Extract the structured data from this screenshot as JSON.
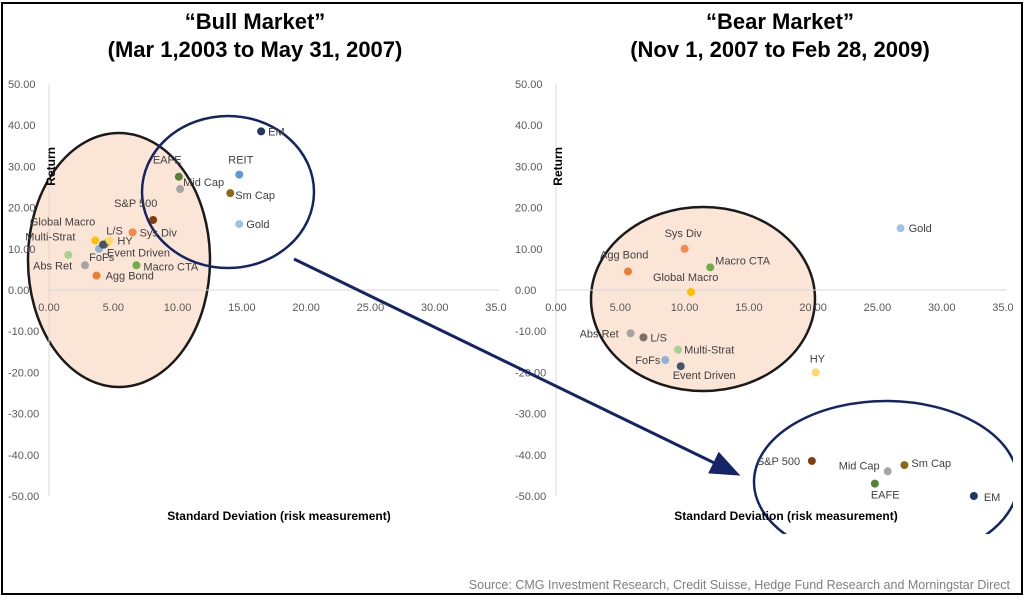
{
  "chart_data": [
    {
      "type": "scatter",
      "title": "“Bull Market”",
      "subtitle": "(Mar 1,2003 to May 31, 2007)",
      "xlabel": "Standard Deviation (risk measurement)",
      "ylabel": "Return",
      "xlim": [
        0,
        35
      ],
      "ylim": [
        -50,
        50
      ],
      "xticks": [
        "0.00",
        "5.00",
        "10.00",
        "15.00",
        "20.00",
        "25.00",
        "30.00",
        "35.00"
      ],
      "yticks": [
        "50.00",
        "40.00",
        "30.00",
        "20.00",
        "10.00",
        "0.00",
        "-10.00",
        "-20.00",
        "-30.00",
        "-40.00",
        "-50.00"
      ],
      "points": [
        {
          "label": "EM",
          "x": 16.5,
          "y": 38.5,
          "color": "#1f3864"
        },
        {
          "label": "REIT",
          "x": 14.8,
          "y": 28.0,
          "color": "#5b9bd5"
        },
        {
          "label": "EAFE",
          "x": 10.1,
          "y": 27.5,
          "color": "#548235"
        },
        {
          "label": "Mid Cap",
          "x": 10.2,
          "y": 24.5,
          "color": "#a5a5a5"
        },
        {
          "label": "Sm Cap",
          "x": 14.1,
          "y": 23.5,
          "color": "#8b6914"
        },
        {
          "label": "Gold",
          "x": 14.8,
          "y": 16.0,
          "color": "#9dc3e6"
        },
        {
          "label": "S&P 500",
          "x": 8.1,
          "y": 17.0,
          "color": "#843c0c"
        },
        {
          "label": "Sys Div",
          "x": 6.5,
          "y": 14.0,
          "color": "#f4894b"
        },
        {
          "label": "Global Macro",
          "x": 4.5,
          "y": 11.5,
          "color": "#ffc000"
        },
        {
          "label": "L/S",
          "x": 4.3,
          "y": 11.0,
          "color": "#7f6f66"
        },
        {
          "label": "HY",
          "x": 4.7,
          "y": 12.0,
          "color": "#ffd966"
        },
        {
          "label": "Multi-Strat",
          "x": 3.6,
          "y": 12.0,
          "color": "#ffc000"
        },
        {
          "label": "FoFs",
          "x": 3.9,
          "y": 10.0,
          "color": "#8fb0d9"
        },
        {
          "label": "Event Driven",
          "x": 4.2,
          "y": 11.0,
          "color": "#44546a"
        },
        {
          "label": "Macro CTA",
          "x": 6.8,
          "y": 6.0,
          "color": "#70ad47"
        },
        {
          "label": "Abs Ret",
          "x": 2.8,
          "y": 6.0,
          "color": "#a5a5a5"
        },
        {
          "label": "Agg Bond",
          "x": 3.7,
          "y": 3.5,
          "color": "#ed7d31"
        },
        {
          "label": "",
          "x": 1.5,
          "y": 8.5,
          "color": "#a9d18e"
        }
      ]
    },
    {
      "type": "scatter",
      "title": "“Bear Market”",
      "subtitle": "(Nov 1, 2007 to Feb 28, 2009)",
      "xlabel": "Standard Deviation (risk measurement)",
      "ylabel": "Return",
      "xlim": [
        0,
        35
      ],
      "ylim": [
        -50,
        50
      ],
      "xticks": [
        "0.00",
        "5.00",
        "10.00",
        "15.00",
        "20.00",
        "25.00",
        "30.00",
        "35.00"
      ],
      "yticks": [
        "50.00",
        "40.00",
        "30.00",
        "20.00",
        "10.00",
        "0.00",
        "-10.00",
        "-20.00",
        "-30.00",
        "-40.00",
        "-50.00"
      ],
      "points": [
        {
          "label": "Gold",
          "x": 26.8,
          "y": 15.0,
          "color": "#9dc3e6"
        },
        {
          "label": "Sys Div",
          "x": 10.0,
          "y": 10.0,
          "color": "#f4894b"
        },
        {
          "label": "Agg Bond",
          "x": 5.6,
          "y": 4.5,
          "color": "#ed7d31"
        },
        {
          "label": "Macro CTA",
          "x": 12.0,
          "y": 5.5,
          "color": "#70ad47"
        },
        {
          "label": "Global Macro",
          "x": 10.5,
          "y": -0.5,
          "color": "#ffc000"
        },
        {
          "label": "Abs Ret",
          "x": 5.8,
          "y": -10.5,
          "color": "#a5a5a5"
        },
        {
          "label": "L/S",
          "x": 6.8,
          "y": -11.5,
          "color": "#7f6f66"
        },
        {
          "label": "Multi-Strat",
          "x": 9.5,
          "y": -14.5,
          "color": "#a9d18e"
        },
        {
          "label": "FoFs",
          "x": 8.5,
          "y": -17.0,
          "color": "#8fb0d9"
        },
        {
          "label": "Event Driven",
          "x": 9.7,
          "y": -18.5,
          "color": "#44546a"
        },
        {
          "label": "HY",
          "x": 20.2,
          "y": -20.0,
          "color": "#ffd966"
        },
        {
          "label": "S&P 500",
          "x": 19.9,
          "y": -41.5,
          "color": "#843c0c"
        },
        {
          "label": "Mid Cap",
          "x": 25.8,
          "y": -44.0,
          "color": "#a5a5a5"
        },
        {
          "label": "Sm Cap",
          "x": 27.1,
          "y": -42.5,
          "color": "#8b6914"
        },
        {
          "label": "EAFE",
          "x": 24.8,
          "y": -47.0,
          "color": "#548235"
        },
        {
          "label": "EM",
          "x": 32.5,
          "y": -50.0,
          "color": "#1f3864"
        }
      ]
    }
  ],
  "source": "Source: CMG Investment Research, Credit Suisse, Hedge Fund Research and Morningstar Direct",
  "colors": {
    "ellipse_fill": "#fbe5d6",
    "ellipse_stroke_dark": "#1a1a1a",
    "ellipse_stroke_blue": "#142466",
    "arrow": "#142466"
  }
}
